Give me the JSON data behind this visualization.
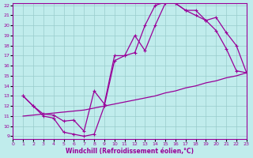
{
  "xlabel": "Windchill (Refroidissement éolien,°C)",
  "xlim": [
    0,
    23
  ],
  "ylim": [
    9,
    22
  ],
  "yticks": [
    9,
    10,
    11,
    12,
    13,
    14,
    15,
    16,
    17,
    18,
    19,
    20,
    21,
    22
  ],
  "xticks": [
    0,
    1,
    2,
    3,
    4,
    5,
    6,
    7,
    8,
    9,
    10,
    11,
    12,
    13,
    14,
    15,
    16,
    17,
    18,
    19,
    20,
    21,
    22,
    23
  ],
  "line_color": "#990099",
  "bg_color": "#c0ecec",
  "grid_color": "#99cccc",
  "curve_upper_x": [
    1,
    2,
    3,
    4,
    5,
    6,
    7,
    8,
    9,
    10,
    11,
    12,
    13,
    14,
    15,
    16,
    17,
    18,
    19,
    20,
    21,
    22,
    23
  ],
  "curve_upper_y": [
    13.0,
    12.0,
    11.2,
    11.1,
    10.5,
    10.6,
    9.5,
    13.5,
    12.2,
    17.0,
    17.0,
    19.0,
    17.5,
    20.0,
    22.2,
    22.2,
    21.5,
    21.5,
    20.5,
    20.8,
    19.3,
    18.0,
    15.3
  ],
  "curve_lower_x": [
    1,
    2,
    3,
    4,
    5,
    6,
    7,
    8,
    9,
    10,
    11,
    12,
    13,
    14,
    15,
    16,
    17,
    18,
    19,
    20,
    21,
    22,
    23
  ],
  "curve_lower_y": [
    13.0,
    12.0,
    11.0,
    10.8,
    9.4,
    9.2,
    9.0,
    9.2,
    12.0,
    16.5,
    17.0,
    17.3,
    20.0,
    22.0,
    22.3,
    22.2,
    21.5,
    21.0,
    20.5,
    19.5,
    17.7,
    15.5,
    15.3
  ],
  "curve_diag_x": [
    1,
    2,
    3,
    4,
    5,
    6,
    7,
    8,
    9,
    10,
    11,
    12,
    13,
    14,
    15,
    16,
    17,
    18,
    19,
    20,
    21,
    22,
    23
  ],
  "curve_diag_y": [
    11.0,
    11.1,
    11.2,
    11.3,
    11.4,
    11.5,
    11.6,
    11.8,
    12.0,
    12.2,
    12.4,
    12.6,
    12.8,
    13.0,
    13.3,
    13.5,
    13.8,
    14.0,
    14.3,
    14.5,
    14.8,
    15.0,
    15.3
  ],
  "markersize": 3.5,
  "linewidth": 0.9
}
